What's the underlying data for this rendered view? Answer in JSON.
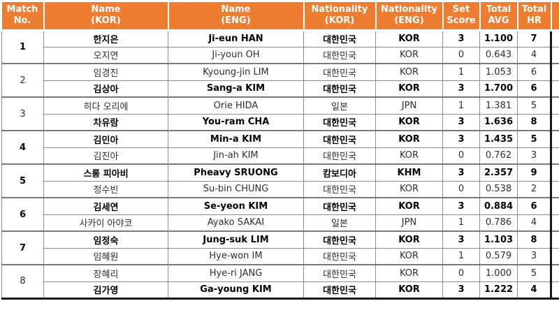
{
  "accent_color": "#ED7D31",
  "grid_color": "#8c8c8c",
  "table": {
    "headers": [
      {
        "line1": "Match",
        "line2": "No."
      },
      {
        "line1": "Name",
        "line2": "(KOR)"
      },
      {
        "line1": "Name",
        "line2": "(ENG)"
      },
      {
        "line1": "Nationality",
        "line2": "(KOR)"
      },
      {
        "line1": "Nationality",
        "line2": "(ENG)"
      },
      {
        "line1": "Set",
        "line2": "Score"
      },
      {
        "line1": "Total",
        "line2": "AVG"
      },
      {
        "line1": "Total",
        "line2": "HR"
      }
    ],
    "matches": [
      {
        "no": "1",
        "players": [
          {
            "name_kor": "한지은",
            "name_eng": "Ji-eun HAN",
            "nat_kor": "대한민국",
            "nat_eng": "KOR",
            "set_score": "3",
            "total_avg": "1.100",
            "total_hr": "7",
            "winner": true
          },
          {
            "name_kor": "오지연",
            "name_eng": "Ji-youn OH",
            "nat_kor": "대한민국",
            "nat_eng": "KOR",
            "set_score": "0",
            "total_avg": "0.643",
            "total_hr": "4",
            "winner": false
          }
        ]
      },
      {
        "no": "2",
        "players": [
          {
            "name_kor": "임경진",
            "name_eng": "Kyoung-jin LIM",
            "nat_kor": "대한민국",
            "nat_eng": "KOR",
            "set_score": "1",
            "total_avg": "1.053",
            "total_hr": "6",
            "winner": false
          },
          {
            "name_kor": "김상아",
            "name_eng": "Sang-a KIM",
            "nat_kor": "대한민국",
            "nat_eng": "KOR",
            "set_score": "3",
            "total_avg": "1.700",
            "total_hr": "6",
            "winner": true
          }
        ]
      },
      {
        "no": "3",
        "players": [
          {
            "name_kor": "히다 오리에",
            "name_eng": "Orie HIDA",
            "nat_kor": "일본",
            "nat_eng": "JPN",
            "set_score": "1",
            "total_avg": "1.381",
            "total_hr": "5",
            "winner": false
          },
          {
            "name_kor": "차유람",
            "name_eng": "You-ram CHA",
            "nat_kor": "대한민국",
            "nat_eng": "KOR",
            "set_score": "3",
            "total_avg": "1.636",
            "total_hr": "8",
            "winner": true
          }
        ]
      },
      {
        "no": "4",
        "players": [
          {
            "name_kor": "김민아",
            "name_eng": "Min-a KIM",
            "nat_kor": "대한민국",
            "nat_eng": "KOR",
            "set_score": "3",
            "total_avg": "1.435",
            "total_hr": "5",
            "winner": true
          },
          {
            "name_kor": "김진아",
            "name_eng": "Jin-ah KIM",
            "nat_kor": "대한민국",
            "nat_eng": "KOR",
            "set_score": "0",
            "total_avg": "0.762",
            "total_hr": "3",
            "winner": false
          }
        ]
      },
      {
        "no": "5",
        "players": [
          {
            "name_kor": "스롱 피아비",
            "name_eng": "Pheavy SRUONG",
            "nat_kor": "캄보디아",
            "nat_eng": "KHM",
            "set_score": "3",
            "total_avg": "2.357",
            "total_hr": "9",
            "winner": true
          },
          {
            "name_kor": "정수빈",
            "name_eng": "Su-bin CHUNG",
            "nat_kor": "대한민국",
            "nat_eng": "KOR",
            "set_score": "0",
            "total_avg": "0.538",
            "total_hr": "2",
            "winner": false
          }
        ]
      },
      {
        "no": "6",
        "players": [
          {
            "name_kor": "김세연",
            "name_eng": "Se-yeon KIM",
            "nat_kor": "대한민국",
            "nat_eng": "KOR",
            "set_score": "3",
            "total_avg": "0.884",
            "total_hr": "6",
            "winner": true
          },
          {
            "name_kor": "사카이 아야코",
            "name_eng": "Ayako SAKAI",
            "nat_kor": "일본",
            "nat_eng": "JPN",
            "set_score": "1",
            "total_avg": "0.786",
            "total_hr": "4",
            "winner": false
          }
        ]
      },
      {
        "no": "7",
        "players": [
          {
            "name_kor": "임정숙",
            "name_eng": "Jung-suk LIM",
            "nat_kor": "대한민국",
            "nat_eng": "KOR",
            "set_score": "3",
            "total_avg": "1.103",
            "total_hr": "8",
            "winner": true
          },
          {
            "name_kor": "임혜원",
            "name_eng": "Hye-won IM",
            "nat_kor": "대한민국",
            "nat_eng": "KOR",
            "set_score": "1",
            "total_avg": "0.579",
            "total_hr": "3",
            "winner": false
          }
        ]
      },
      {
        "no": "8",
        "players": [
          {
            "name_kor": "장혜리",
            "name_eng": "Hye-ri JANG",
            "nat_kor": "대한민국",
            "nat_eng": "KOR",
            "set_score": "0",
            "total_avg": "1.000",
            "total_hr": "5",
            "winner": false
          },
          {
            "name_kor": "김가영",
            "name_eng": "Ga-young KIM",
            "nat_kor": "대한민국",
            "nat_eng": "KOR",
            "set_score": "3",
            "total_avg": "1.222",
            "total_hr": "4",
            "winner": true
          }
        ]
      }
    ]
  }
}
